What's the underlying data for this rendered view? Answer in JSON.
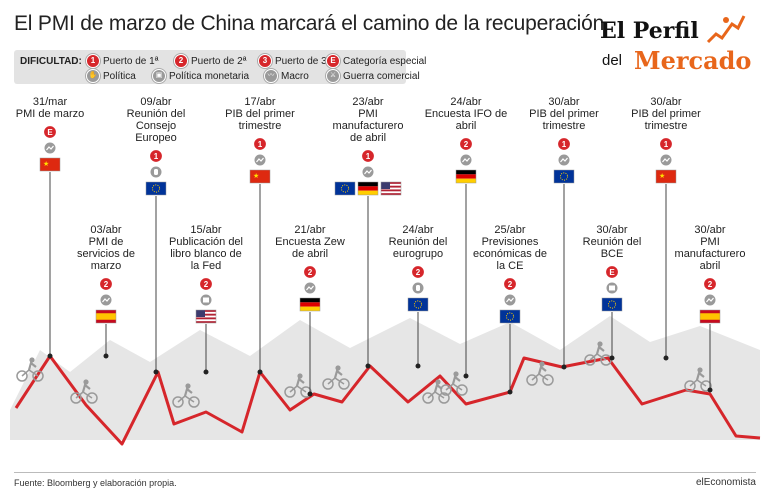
{
  "title": "El PMI de marzo de China marcará el camino de la recuperación",
  "logo": {
    "line1": "El Perfil",
    "line2": "del",
    "line3": "Mercado"
  },
  "legend": {
    "title": "DIFICULTAD:",
    "items": [
      {
        "badge": "1",
        "label": "Puerto de 1ª",
        "kind": "red"
      },
      {
        "badge": "2",
        "label": "Puerto de 2ª",
        "kind": "red"
      },
      {
        "badge": "3",
        "label": "Puerto de 3ª",
        "kind": "red"
      },
      {
        "badge": "E",
        "label": "Categoría especial",
        "kind": "red"
      },
      {
        "badge": "",
        "label": "Política",
        "kind": "gray",
        "icon": "politics-icon"
      },
      {
        "badge": "",
        "label": "Política monetaria",
        "kind": "gray",
        "icon": "monetary-policy-icon"
      },
      {
        "badge": "",
        "label": "Macro",
        "kind": "gray",
        "icon": "macro-icon"
      },
      {
        "badge": "",
        "label": "Guerra comercial",
        "kind": "gray",
        "icon": "trade-war-icon"
      }
    ]
  },
  "events": [
    {
      "date": "31/mar",
      "desc": [
        "PMI de marzo"
      ],
      "badge": "E",
      "category": "macro",
      "flags": [
        "china"
      ]
    },
    {
      "date": "03/abr",
      "desc": [
        "PMI de",
        "servicios de",
        "marzo"
      ],
      "badge": "2",
      "category": "macro",
      "flags": [
        "spain"
      ]
    },
    {
      "date": "09/abr",
      "desc": [
        "Reunión del",
        "Consejo",
        "Europeo"
      ],
      "badge": "1",
      "category": "politics",
      "flags": [
        "eu"
      ]
    },
    {
      "date": "15/abr",
      "desc": [
        "Publicación del",
        "libro blanco de",
        "la Fed"
      ],
      "badge": "2",
      "category": "monetary",
      "flags": [
        "usa"
      ]
    },
    {
      "date": "17/abr",
      "desc": [
        "PIB del primer",
        "trimestre"
      ],
      "badge": "1",
      "category": "macro",
      "flags": [
        "china"
      ]
    },
    {
      "date": "21/abr",
      "desc": [
        "Encuesta Zew",
        "de abril"
      ],
      "badge": "2",
      "category": "macro",
      "flags": [
        "germany"
      ]
    },
    {
      "date": "23/abr",
      "desc": [
        "PMI",
        "manufacturero",
        "de abril"
      ],
      "badge": "1",
      "category": "macro",
      "flags": [
        "eu",
        "germany",
        "usa"
      ]
    },
    {
      "date": "24/abr",
      "desc": [
        "Reunión del",
        "eurogrupo"
      ],
      "badge": "2",
      "category": "politics",
      "flags": [
        "eu"
      ]
    },
    {
      "date": "24/abr",
      "desc": [
        "Encuesta IFO de",
        "abril"
      ],
      "badge": "2",
      "category": "macro",
      "flags": [
        "germany"
      ]
    },
    {
      "date": "25/abr",
      "desc": [
        "Previsiones",
        "económicas de",
        "la CE"
      ],
      "badge": "2",
      "category": "macro",
      "flags": [
        "eu"
      ]
    },
    {
      "date": "30/abr",
      "desc": [
        "PIB del primer",
        "trimestre"
      ],
      "badge": "1",
      "category": "macro",
      "flags": [
        "eu"
      ]
    },
    {
      "date": "30/abr",
      "desc": [
        "Reunión del",
        "BCE"
      ],
      "badge": "E",
      "category": "monetary",
      "flags": [
        "eu"
      ]
    },
    {
      "date": "30/abr",
      "desc": [
        "PIB del primer",
        "trimestre"
      ],
      "badge": "1",
      "category": "macro",
      "flags": [
        "china"
      ]
    },
    {
      "date": "30/abr",
      "desc": [
        "PMI",
        "manufacturero",
        "abril"
      ],
      "badge": "2",
      "category": "macro",
      "flags": [
        "spain"
      ]
    }
  ],
  "footer": {
    "source": "Fuente: Bloomberg y elaboración propia.",
    "brand": "elEconomista"
  },
  "colors": {
    "accent": "#d6262b",
    "logo_orange": "#e8661b",
    "mountain": "#e6e6e6"
  }
}
